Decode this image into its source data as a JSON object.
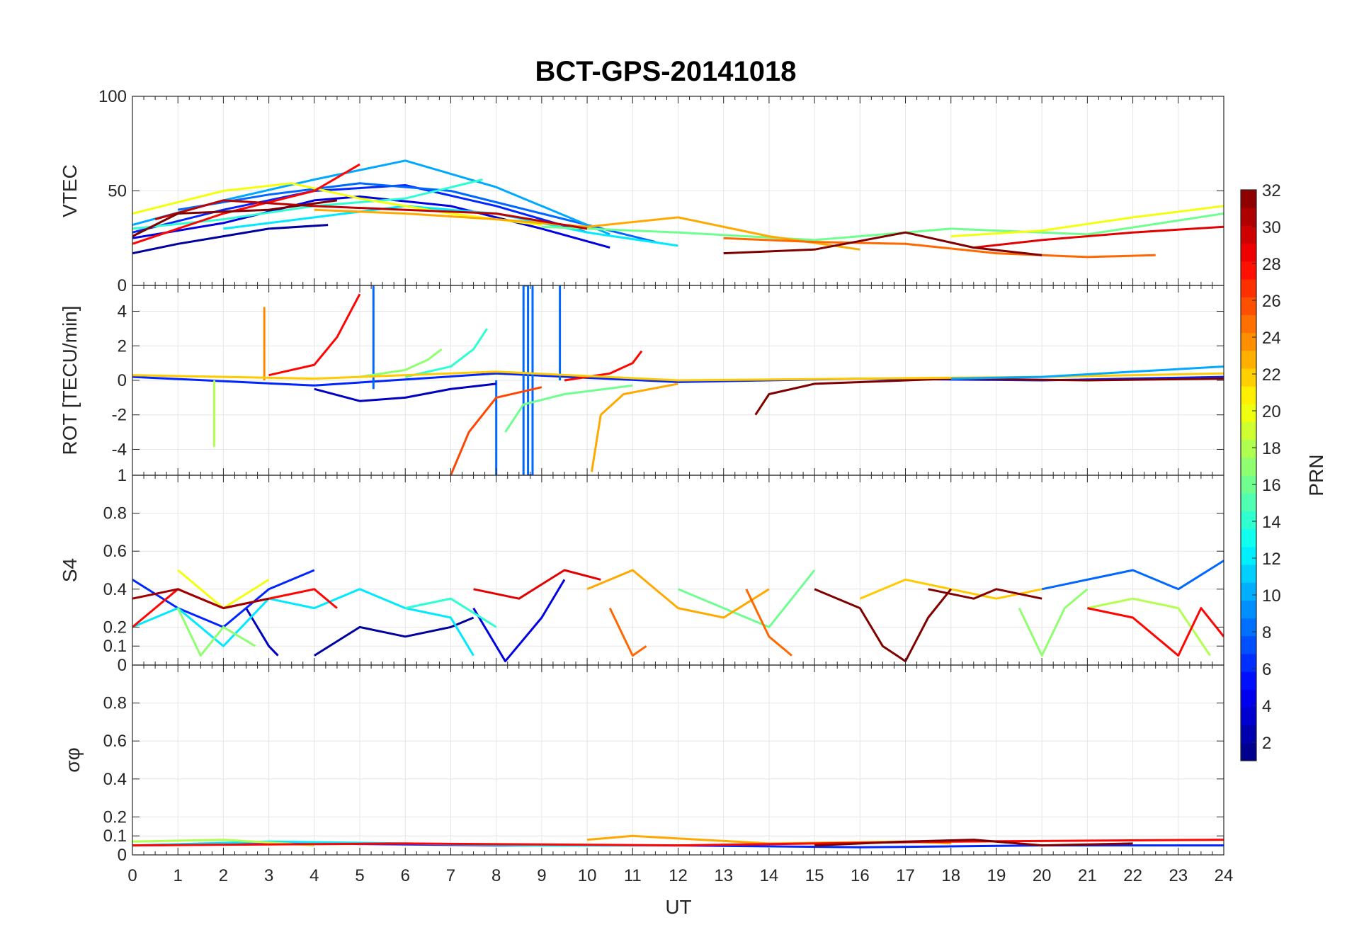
{
  "title": "BCT-GPS-20141018",
  "x_axis": {
    "label": "UT",
    "ticks": [
      "0",
      "1",
      "2",
      "3",
      "4",
      "5",
      "6",
      "7",
      "8",
      "9",
      "10",
      "11",
      "12",
      "13",
      "14",
      "15",
      "16",
      "17",
      "18",
      "19",
      "20",
      "21",
      "22",
      "23",
      "24"
    ],
    "range": [
      0,
      24
    ]
  },
  "colorbar": {
    "label": "PRN",
    "range": [
      1,
      32
    ],
    "ticks": [
      "2",
      "4",
      "6",
      "8",
      "10",
      "12",
      "14",
      "16",
      "18",
      "20",
      "22",
      "24",
      "26",
      "28",
      "30",
      "32"
    ],
    "colormap": "jet"
  },
  "chart_data": [
    {
      "type": "line",
      "panel": "VTEC",
      "ylabel": "VTEC",
      "ylim": [
        0,
        100
      ],
      "yticks": [
        "0",
        "50",
        "100"
      ],
      "grid": true,
      "series": [
        {
          "prn": 2,
          "x": [
            0,
            1,
            2,
            3,
            4.3
          ],
          "y": [
            17,
            22,
            26,
            30,
            32
          ]
        },
        {
          "prn": 4,
          "x": [
            0,
            2,
            4,
            5,
            7,
            9,
            10.5
          ],
          "y": [
            25,
            33,
            45,
            47,
            42,
            30,
            20
          ]
        },
        {
          "prn": 6,
          "x": [
            0,
            2,
            4,
            6,
            8,
            10
          ],
          "y": [
            28,
            40,
            50,
            53,
            42,
            28
          ]
        },
        {
          "prn": 8,
          "x": [
            1,
            3,
            5,
            7,
            9,
            11.5
          ],
          "y": [
            40,
            48,
            54,
            50,
            38,
            23
          ]
        },
        {
          "prn": 10,
          "x": [
            0,
            2,
            4,
            6,
            8,
            10.5
          ],
          "y": [
            32,
            45,
            56,
            66,
            52,
            27
          ]
        },
        {
          "prn": 12,
          "x": [
            2,
            4,
            6,
            8,
            10,
            12
          ],
          "y": [
            30,
            36,
            42,
            38,
            28,
            21
          ]
        },
        {
          "prn": 14,
          "x": [
            0,
            2,
            4,
            6,
            7.7
          ],
          "y": [
            30,
            35,
            42,
            46,
            56
          ]
        },
        {
          "prn": 16,
          "x": [
            9,
            12,
            15,
            18,
            21,
            24
          ],
          "y": [
            31,
            28,
            24,
            30,
            27,
            38
          ]
        },
        {
          "prn": 20,
          "x": [
            0,
            2,
            3.5,
            5,
            7,
            9
          ],
          "y": [
            38,
            50,
            54,
            46,
            38,
            32
          ]
        },
        {
          "prn": 20,
          "x": [
            18,
            20,
            22,
            24
          ],
          "y": [
            26,
            29,
            36,
            42
          ]
        },
        {
          "prn": 23,
          "x": [
            4,
            6,
            8,
            10,
            12,
            14,
            16
          ],
          "y": [
            40,
            38,
            35,
            31,
            36,
            26,
            19
          ]
        },
        {
          "prn": 25,
          "x": [
            13,
            15,
            17,
            19,
            21,
            22.5
          ],
          "y": [
            25,
            23,
            22,
            17,
            15,
            16
          ]
        },
        {
          "prn": 28,
          "x": [
            0,
            2,
            4,
            5
          ],
          "y": [
            22,
            38,
            50,
            64
          ]
        },
        {
          "prn": 29,
          "x": [
            18.5,
            20,
            22,
            24
          ],
          "y": [
            20,
            24,
            28,
            31
          ]
        },
        {
          "prn": 30,
          "x": [
            0.5,
            2,
            4,
            6,
            8,
            10
          ],
          "y": [
            35,
            45,
            42,
            40,
            38,
            30
          ]
        },
        {
          "prn": 32,
          "x": [
            0,
            1,
            3,
            4.5
          ],
          "y": [
            26,
            38,
            40,
            45
          ]
        },
        {
          "prn": 32,
          "x": [
            13,
            15,
            17,
            18.5,
            20
          ],
          "y": [
            17,
            19,
            28,
            20,
            16
          ]
        }
      ]
    },
    {
      "type": "line",
      "panel": "ROT",
      "ylabel": "ROT [TECU/min]",
      "ylim": [
        -5.5,
        5.5
      ],
      "yticks": [
        "-4",
        "-2",
        "0",
        "2",
        "4"
      ],
      "grid": true,
      "series": [
        {
          "prn": 6,
          "x": [
            0,
            4,
            8,
            12,
            16,
            20,
            24
          ],
          "y": [
            0.2,
            -0.3,
            0.4,
            -0.1,
            0.1,
            0,
            0.2
          ]
        },
        {
          "prn": 8,
          "x": [
            5.3,
            5.3,
            5.3
          ],
          "y": [
            -0.5,
            5.5,
            -0.5
          ]
        },
        {
          "prn": 8,
          "x": [
            8.6,
            8.6,
            8.7,
            8.7,
            8.8,
            8.8
          ],
          "y": [
            -5.5,
            5.5,
            5.5,
            -5.5,
            -5.5,
            5.5
          ]
        },
        {
          "prn": 8,
          "x": [
            9.4,
            9.4,
            9.4
          ],
          "y": [
            0,
            5.5,
            0
          ]
        },
        {
          "prn": 8,
          "x": [
            8.0,
            8.0,
            8.0
          ],
          "y": [
            0,
            -5.5,
            0
          ]
        },
        {
          "prn": 18,
          "x": [
            1.8,
            1.8,
            1.8
          ],
          "y": [
            0,
            -3.8,
            0
          ]
        },
        {
          "prn": 24,
          "x": [
            2.9,
            2.9,
            2.9
          ],
          "y": [
            0,
            4.2,
            0
          ]
        },
        {
          "prn": 28,
          "x": [
            3,
            4,
            4.5,
            5
          ],
          "y": [
            0.3,
            0.9,
            2.5,
            5
          ]
        },
        {
          "prn": 14,
          "x": [
            6,
            7,
            7.5,
            7.8
          ],
          "y": [
            0.2,
            0.8,
            1.8,
            3
          ]
        },
        {
          "prn": 17,
          "x": [
            5,
            6,
            6.5,
            6.8
          ],
          "y": [
            0.2,
            0.6,
            1.2,
            1.8
          ]
        },
        {
          "prn": 26,
          "x": [
            7,
            7.4,
            8,
            9
          ],
          "y": [
            -5.5,
            -3,
            -1,
            -0.4
          ]
        },
        {
          "prn": 23,
          "x": [
            10.1,
            10.3,
            10.8,
            12
          ],
          "y": [
            -5.3,
            -2,
            -0.8,
            -0.2
          ]
        },
        {
          "prn": 16,
          "x": [
            8.2,
            8.6,
            9.5,
            11
          ],
          "y": [
            -3,
            -1.4,
            -0.8,
            -0.3
          ]
        },
        {
          "prn": 28,
          "x": [
            9.5,
            10.5,
            11,
            11.2
          ],
          "y": [
            0,
            0.4,
            1,
            1.7
          ]
        },
        {
          "prn": 32,
          "x": [
            13.7,
            14,
            15,
            18,
            21,
            24
          ],
          "y": [
            -2,
            -0.8,
            -0.2,
            0.1,
            0,
            0.1
          ]
        },
        {
          "prn": 22,
          "x": [
            0,
            4,
            8,
            12,
            16,
            20,
            24
          ],
          "y": [
            0.3,
            0.1,
            0.5,
            0,
            0.1,
            0.2,
            0.4
          ]
        },
        {
          "prn": 3,
          "x": [
            4,
            5,
            6,
            7,
            8
          ],
          "y": [
            -0.5,
            -1.2,
            -1,
            -0.5,
            -0.2
          ]
        },
        {
          "prn": 10,
          "x": [
            18,
            20,
            22,
            24
          ],
          "y": [
            0.1,
            0.2,
            0.5,
            0.8
          ]
        }
      ]
    },
    {
      "type": "line",
      "panel": "S4",
      "ylabel": "S4",
      "ylim": [
        0,
        1
      ],
      "yticks": [
        "0",
        "0.1",
        "0.2",
        "0.4",
        "0.6",
        "0.8",
        "1"
      ],
      "grid": true,
      "series": [
        {
          "prn": 2,
          "x": [
            4,
            5,
            6,
            7,
            7.5
          ],
          "y": [
            0.05,
            0.2,
            0.15,
            0.2,
            0.25
          ]
        },
        {
          "prn": 3,
          "x": [
            2.5,
            3,
            3.2
          ],
          "y": [
            0.3,
            0.1,
            0.05
          ]
        },
        {
          "prn": 4,
          "x": [
            7.5,
            8.2,
            9,
            9.5
          ],
          "y": [
            0.3,
            0.02,
            0.25,
            0.45
          ]
        },
        {
          "prn": 6,
          "x": [
            0,
            1,
            2,
            3,
            4
          ],
          "y": [
            0.45,
            0.3,
            0.2,
            0.4,
            0.5
          ]
        },
        {
          "prn": 8,
          "x": [
            20,
            21,
            22,
            23,
            24
          ],
          "y": [
            0.4,
            0.45,
            0.5,
            0.4,
            0.55
          ]
        },
        {
          "prn": 12,
          "x": [
            0,
            1,
            2,
            3,
            4,
            5,
            6,
            7,
            7.5
          ],
          "y": [
            0.2,
            0.3,
            0.1,
            0.35,
            0.3,
            0.4,
            0.3,
            0.25,
            0.05
          ]
        },
        {
          "prn": 14,
          "x": [
            6,
            7,
            8
          ],
          "y": [
            0.3,
            0.35,
            0.2
          ]
        },
        {
          "prn": 16,
          "x": [
            12,
            13,
            14,
            15
          ],
          "y": [
            0.4,
            0.3,
            0.2,
            0.5
          ]
        },
        {
          "prn": 17,
          "x": [
            1,
            1.5,
            2,
            2.7
          ],
          "y": [
            0.3,
            0.05,
            0.2,
            0.1
          ]
        },
        {
          "prn": 17,
          "x": [
            19.5,
            20,
            20.5,
            21
          ],
          "y": [
            0.3,
            0.05,
            0.3,
            0.4
          ]
        },
        {
          "prn": 18,
          "x": [
            21,
            22,
            23,
            23.7
          ],
          "y": [
            0.3,
            0.35,
            0.3,
            0.05
          ]
        },
        {
          "prn": 20,
          "x": [
            1,
            2,
            3
          ],
          "y": [
            0.5,
            0.3,
            0.45
          ]
        },
        {
          "prn": 22,
          "x": [
            16,
            17,
            18,
            19,
            20
          ],
          "y": [
            0.35,
            0.45,
            0.4,
            0.35,
            0.4
          ]
        },
        {
          "prn": 23,
          "x": [
            10,
            11,
            12,
            13,
            14
          ],
          "y": [
            0.4,
            0.5,
            0.3,
            0.25,
            0.4
          ]
        },
        {
          "prn": 25,
          "x": [
            13.5,
            14,
            14.5
          ],
          "y": [
            0.4,
            0.15,
            0.05
          ]
        },
        {
          "prn": 25,
          "x": [
            10.5,
            11,
            11.3
          ],
          "y": [
            0.3,
            0.05,
            0.1
          ]
        },
        {
          "prn": 28,
          "x": [
            0,
            1,
            2,
            3,
            4,
            4.5
          ],
          "y": [
            0.2,
            0.4,
            0.3,
            0.35,
            0.4,
            0.3
          ]
        },
        {
          "prn": 28,
          "x": [
            21,
            22,
            23,
            23.5,
            24
          ],
          "y": [
            0.3,
            0.25,
            0.05,
            0.3,
            0.15
          ]
        },
        {
          "prn": 29,
          "x": [
            7.5,
            8.5,
            9.5,
            10.3
          ],
          "y": [
            0.4,
            0.35,
            0.5,
            0.45
          ]
        },
        {
          "prn": 31,
          "x": [
            0,
            1,
            2,
            3
          ],
          "y": [
            0.35,
            0.4,
            0.3,
            0.35
          ]
        },
        {
          "prn": 32,
          "x": [
            15,
            16,
            16.5,
            17,
            17.5,
            18
          ],
          "y": [
            0.4,
            0.3,
            0.1,
            0.02,
            0.25,
            0.4
          ]
        },
        {
          "prn": 32,
          "x": [
            17.5,
            18.5,
            19,
            20
          ],
          "y": [
            0.4,
            0.35,
            0.4,
            0.35
          ]
        }
      ]
    },
    {
      "type": "line",
      "panel": "sigma_phi",
      "ylabel": "σφ",
      "ylim": [
        0,
        1
      ],
      "yticks": [
        "0",
        "0.1",
        "0.2",
        "0.4",
        "0.6",
        "0.8"
      ],
      "grid": true,
      "series": [
        {
          "prn": 6,
          "x": [
            0,
            4,
            8,
            12,
            16,
            20,
            24
          ],
          "y": [
            0.05,
            0.06,
            0.05,
            0.05,
            0.04,
            0.05,
            0.05
          ]
        },
        {
          "prn": 12,
          "x": [
            0,
            3,
            6,
            9,
            12
          ],
          "y": [
            0.05,
            0.07,
            0.06,
            0.05,
            0.05
          ]
        },
        {
          "prn": 18,
          "x": [
            0,
            2,
            4
          ],
          "y": [
            0.07,
            0.08,
            0.05
          ]
        },
        {
          "prn": 23,
          "x": [
            10,
            11,
            14,
            17,
            18
          ],
          "y": [
            0.08,
            0.1,
            0.06,
            0.07,
            0.06
          ]
        },
        {
          "prn": 28,
          "x": [
            0,
            6,
            12,
            18,
            24
          ],
          "y": [
            0.05,
            0.06,
            0.05,
            0.07,
            0.08
          ]
        },
        {
          "prn": 32,
          "x": [
            15,
            17,
            18.5,
            20,
            22
          ],
          "y": [
            0.05,
            0.07,
            0.08,
            0.05,
            0.06
          ]
        }
      ]
    }
  ]
}
